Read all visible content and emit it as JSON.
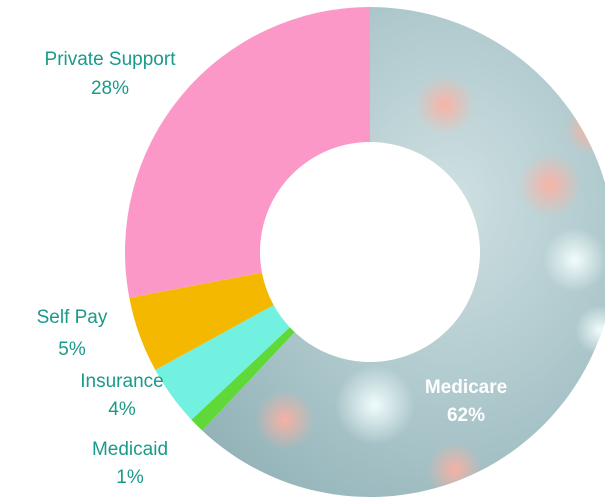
{
  "chart_data": {
    "type": "donut",
    "categories": [
      "Medicare",
      "Medicaid",
      "Insurance",
      "Self Pay",
      "Private Support"
    ],
    "values": [
      62,
      1,
      4,
      5,
      28
    ],
    "value_labels": [
      "62%",
      "1%",
      "4%",
      "5%",
      "28%"
    ],
    "colors": [
      "#a9c6ca",
      "#5fd83a",
      "#72f0e0",
      "#f5b800",
      "#fc98c8"
    ]
  }
}
